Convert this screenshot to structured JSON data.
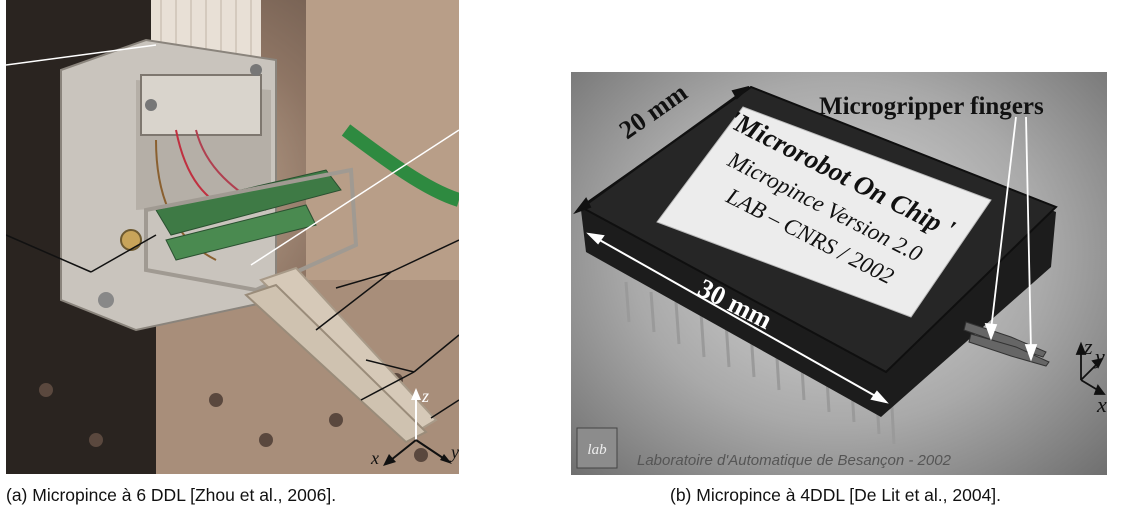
{
  "panel_a": {
    "axes": {
      "z": "z",
      "x": "x",
      "y": "y"
    },
    "caption": "(a) Micropince à 6 DDL [Zhou et al., 2006]."
  },
  "panel_b": {
    "labels": {
      "fingers": "Microgripper fingers",
      "width_dim": "20 mm",
      "length_dim": "30 mm",
      "chip_line1": "'Microrobot On Chip '",
      "chip_line2": "Micropince Version 2.0",
      "chip_line3": "LAB – CNRS / 2002",
      "footer": "Laboratoire d'Automatique de Besançon - 2002",
      "logo": "lab"
    },
    "axes": {
      "z": "z",
      "y": "y",
      "x": "x"
    },
    "caption": "(b) Micropince à 4DDL [De Lit et al., 2004]."
  }
}
